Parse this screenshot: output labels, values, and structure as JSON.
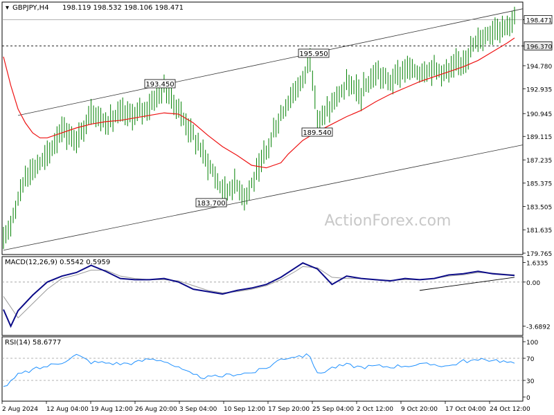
{
  "chart_data": [
    {
      "type": "candlestick",
      "symbol_label": "GBPJPY,H4",
      "ohlc_label": "198.119 198.532 198.106 198.471",
      "watermark": "ActionForex.com",
      "ylim": [
        179.765,
        199.6
      ],
      "y_ticks": [
        "198.471",
        "196.370",
        "194.780",
        "192.935",
        "190.945",
        "189.115",
        "187.235",
        "185.375",
        "183.505",
        "181.635",
        "179.765"
      ],
      "x_ticks": [
        "2 Aug 2024",
        "12 Aug 04:00",
        "19 Aug 12:00",
        "26 Aug 20:00",
        "3 Sep 04:00",
        "10 Sep 12:00",
        "17 Sep 20:00",
        "25 Sep 04:00",
        "2 Oct 12:00",
        "9 Oct 20:00",
        "17 Oct 04:00",
        "24 Oct 12:00"
      ],
      "current_price": "198.471",
      "support_level": "196.370",
      "annotations": [
        "193.450",
        "195.950",
        "189.540",
        "183.700"
      ],
      "moving_average_color": "#ee1111",
      "close_points": [
        [
          0,
          180.5
        ],
        [
          3,
          186.0
        ],
        [
          6,
          187.5
        ],
        [
          8,
          189.8
        ],
        [
          10,
          188.6
        ],
        [
          12,
          191.2
        ],
        [
          14,
          190.2
        ],
        [
          16,
          190.9
        ],
        [
          18,
          190.8
        ],
        [
          20,
          191.6
        ],
        [
          22,
          193.0
        ],
        [
          24,
          191.2
        ],
        [
          26,
          189.2
        ],
        [
          28,
          187.0
        ],
        [
          30,
          184.8
        ],
        [
          32,
          185.3
        ],
        [
          33,
          184.3
        ],
        [
          35,
          186.4
        ],
        [
          37,
          189.5
        ],
        [
          39,
          192.0
        ],
        [
          41,
          193.6
        ],
        [
          42,
          195.6
        ],
        [
          43,
          190.3
        ],
        [
          45,
          191.6
        ],
        [
          47,
          193.3
        ],
        [
          49,
          192.5
        ],
        [
          51,
          194.2
        ],
        [
          53,
          193.5
        ],
        [
          55,
          194.5
        ],
        [
          57,
          194.3
        ],
        [
          59,
          194.6
        ],
        [
          61,
          194.2
        ],
        [
          63,
          195.3
        ],
        [
          65,
          196.8
        ],
        [
          67,
          197.7
        ],
        [
          69,
          198.1
        ],
        [
          70,
          198.47
        ]
      ],
      "ma_points": [
        [
          0,
          195.5
        ],
        [
          1,
          193.2
        ],
        [
          2,
          191.3
        ],
        [
          3,
          190.2
        ],
        [
          4,
          189.4
        ],
        [
          5,
          189.0
        ],
        [
          6,
          189.0
        ],
        [
          8,
          189.4
        ],
        [
          10,
          189.8
        ],
        [
          12,
          190.1
        ],
        [
          14,
          190.3
        ],
        [
          16,
          190.4
        ],
        [
          18,
          190.6
        ],
        [
          20,
          190.8
        ],
        [
          22,
          191.0
        ],
        [
          24,
          190.9
        ],
        [
          26,
          190.2
        ],
        [
          28,
          189.2
        ],
        [
          30,
          188.3
        ],
        [
          32,
          187.6
        ],
        [
          34,
          186.8
        ],
        [
          36,
          186.6
        ],
        [
          38,
          187.0
        ],
        [
          39,
          187.7
        ],
        [
          41,
          188.8
        ],
        [
          43,
          189.5
        ],
        [
          45,
          190.1
        ],
        [
          47,
          190.7
        ],
        [
          49,
          191.2
        ],
        [
          51,
          191.9
        ],
        [
          53,
          192.5
        ],
        [
          55,
          193.0
        ],
        [
          57,
          193.5
        ],
        [
          59,
          193.9
        ],
        [
          61,
          194.3
        ],
        [
          63,
          194.7
        ],
        [
          65,
          195.2
        ],
        [
          67,
          195.9
        ],
        [
          69,
          196.6
        ],
        [
          70,
          197.0
        ]
      ],
      "channel_upper": [
        [
          2,
          190.8
        ],
        [
          70,
          199.2
        ]
      ],
      "channel_lower": [
        [
          0,
          180.0
        ],
        [
          70,
          188.3
        ]
      ]
    },
    {
      "type": "line",
      "label": "MACD(12,26,9) 0.5542 0.5959",
      "ylim": [
        -4.3,
        1.9
      ],
      "y_ticks": [
        "1.6335",
        "0.00",
        "-3.6892"
      ],
      "zero_line": 0.0,
      "macd_color": "#0b0b88",
      "signal_color": "#999999",
      "macd_points": [
        [
          0,
          -2.3
        ],
        [
          1,
          -3.7
        ],
        [
          2,
          -2.4
        ],
        [
          4,
          -1.1
        ],
        [
          6,
          0.0
        ],
        [
          8,
          0.5
        ],
        [
          10,
          0.8
        ],
        [
          12,
          1.4
        ],
        [
          14,
          0.9
        ],
        [
          16,
          0.3
        ],
        [
          18,
          0.2
        ],
        [
          20,
          0.2
        ],
        [
          22,
          0.3
        ],
        [
          24,
          0.0
        ],
        [
          26,
          -0.6
        ],
        [
          28,
          -0.8
        ],
        [
          30,
          -1.0
        ],
        [
          32,
          -0.7
        ],
        [
          34,
          -0.5
        ],
        [
          36,
          -0.2
        ],
        [
          38,
          0.4
        ],
        [
          40,
          1.2
        ],
        [
          41,
          1.6
        ],
        [
          43,
          1.1
        ],
        [
          45,
          -0.2
        ],
        [
          47,
          0.5
        ],
        [
          49,
          0.3
        ],
        [
          51,
          0.2
        ],
        [
          53,
          0.1
        ],
        [
          55,
          0.3
        ],
        [
          57,
          0.2
        ],
        [
          59,
          0.3
        ],
        [
          61,
          0.6
        ],
        [
          63,
          0.7
        ],
        [
          65,
          0.9
        ],
        [
          67,
          0.7
        ],
        [
          69,
          0.6
        ],
        [
          70,
          0.55
        ]
      ],
      "signal_points": [
        [
          0,
          -1.2
        ],
        [
          2,
          -3.0
        ],
        [
          4,
          -1.8
        ],
        [
          6,
          -0.6
        ],
        [
          8,
          0.3
        ],
        [
          10,
          0.6
        ],
        [
          12,
          1.0
        ],
        [
          14,
          1.0
        ],
        [
          16,
          0.5
        ],
        [
          18,
          0.3
        ],
        [
          20,
          0.2
        ],
        [
          22,
          0.2
        ],
        [
          24,
          0.1
        ],
        [
          26,
          -0.3
        ],
        [
          28,
          -0.7
        ],
        [
          30,
          -0.9
        ],
        [
          32,
          -0.8
        ],
        [
          34,
          -0.6
        ],
        [
          36,
          -0.3
        ],
        [
          38,
          0.2
        ],
        [
          40,
          0.9
        ],
        [
          41,
          1.3
        ],
        [
          43,
          1.2
        ],
        [
          45,
          0.4
        ],
        [
          47,
          0.3
        ],
        [
          49,
          0.3
        ],
        [
          51,
          0.2
        ],
        [
          53,
          0.15
        ],
        [
          55,
          0.2
        ],
        [
          57,
          0.2
        ],
        [
          59,
          0.3
        ],
        [
          61,
          0.5
        ],
        [
          63,
          0.6
        ],
        [
          65,
          0.8
        ],
        [
          67,
          0.75
        ],
        [
          69,
          0.65
        ],
        [
          70,
          0.6
        ]
      ],
      "trendline": [
        [
          57,
          -0.7
        ],
        [
          70,
          0.4
        ]
      ]
    },
    {
      "type": "line",
      "label": "RSI(14) 58.6777",
      "ylim": [
        0,
        100
      ],
      "y_ticks": [
        "100",
        "70",
        "30",
        "0"
      ],
      "levels": [
        70,
        30
      ],
      "line_color": "#1e90ff",
      "rsi_points": [
        [
          0,
          18
        ],
        [
          1,
          27
        ],
        [
          2,
          40
        ],
        [
          4,
          49
        ],
        [
          6,
          56
        ],
        [
          8,
          63
        ],
        [
          10,
          76
        ],
        [
          12,
          63
        ],
        [
          14,
          62
        ],
        [
          16,
          60
        ],
        [
          18,
          62
        ],
        [
          20,
          69
        ],
        [
          22,
          66
        ],
        [
          24,
          52
        ],
        [
          26,
          39
        ],
        [
          28,
          35
        ],
        [
          30,
          38
        ],
        [
          32,
          42
        ],
        [
          34,
          44
        ],
        [
          36,
          52
        ],
        [
          38,
          69
        ],
        [
          40,
          74
        ],
        [
          42,
          75
        ],
        [
          43,
          41
        ],
        [
          45,
          53
        ],
        [
          47,
          58
        ],
        [
          49,
          54
        ],
        [
          51,
          56
        ],
        [
          53,
          55
        ],
        [
          55,
          57
        ],
        [
          57,
          58
        ],
        [
          59,
          59
        ],
        [
          61,
          56
        ],
        [
          63,
          65
        ],
        [
          65,
          66
        ],
        [
          67,
          68
        ],
        [
          69,
          63
        ],
        [
          70,
          58.68
        ]
      ]
    }
  ]
}
